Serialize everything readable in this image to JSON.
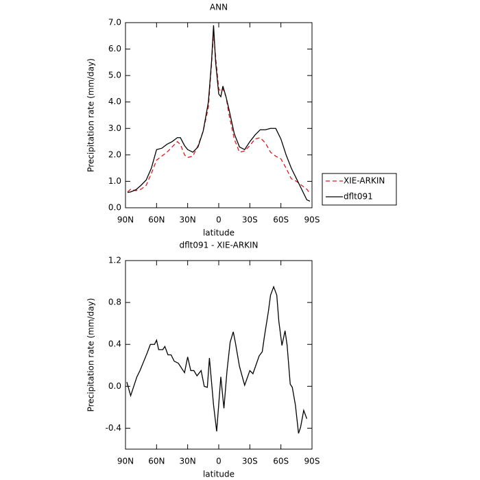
{
  "chart_data": [
    {
      "type": "line",
      "title": "ANN",
      "xlabel": "latitude",
      "ylabel": "Precipitation rate (mm/day)",
      "xlim": [
        90,
        -90
      ],
      "xticks": [
        {
          "value": 90,
          "label": "90N"
        },
        {
          "value": 60,
          "label": "60N"
        },
        {
          "value": 30,
          "label": "30N"
        },
        0,
        {
          "value": -30,
          "label": "30S"
        },
        {
          "value": -60,
          "label": "60S"
        },
        {
          "value": -90,
          "label": "90S"
        }
      ],
      "ylim": [
        0,
        7
      ],
      "yticks": [
        {
          "value": 0,
          "label": "0.0"
        },
        {
          "value": 1,
          "label": "1.0"
        },
        {
          "value": 2,
          "label": "2.0"
        },
        {
          "value": 3,
          "label": "3.0"
        },
        {
          "value": 4,
          "label": "4.0"
        },
        {
          "value": 5,
          "label": "5.0"
        },
        {
          "value": 6,
          "label": "6.0"
        },
        {
          "value": 7,
          "label": "7.0"
        }
      ],
      "legend": "right",
      "x": [
        88,
        85,
        80,
        75,
        70,
        65,
        60,
        55,
        50,
        45,
        40,
        37,
        33,
        30,
        25,
        20,
        15,
        10,
        7,
        5,
        3,
        0,
        -2,
        -4,
        -7,
        -10,
        -15,
        -20,
        -25,
        -30,
        -35,
        -40,
        -45,
        -50,
        -55,
        -60,
        -65,
        -70,
        -75,
        -80,
        -85,
        -88
      ],
      "series": [
        {
          "name": "XIE-ARKIN",
          "color": "#e8141c",
          "line_style": "dashed",
          "values": [
            0.6,
            0.7,
            0.65,
            0.7,
            0.85,
            1.3,
            1.8,
            1.95,
            2.1,
            2.3,
            2.5,
            2.4,
            2.0,
            1.9,
            1.95,
            2.35,
            2.9,
            3.8,
            5.4,
            6.6,
            5.7,
            4.5,
            4.4,
            4.5,
            4.2,
            3.5,
            2.6,
            2.1,
            2.15,
            2.35,
            2.6,
            2.65,
            2.45,
            2.1,
            1.95,
            1.85,
            1.5,
            1.1,
            1.0,
            0.85,
            0.7,
            0.55
          ]
        },
        {
          "name": "dflt091",
          "color": "#000000",
          "line_style": "solid",
          "values": [
            0.58,
            0.6,
            0.68,
            0.85,
            1.05,
            1.5,
            2.2,
            2.25,
            2.4,
            2.5,
            2.65,
            2.65,
            2.35,
            2.2,
            2.1,
            2.3,
            2.9,
            4.0,
            5.5,
            6.9,
            5.5,
            4.3,
            4.2,
            4.6,
            4.2,
            3.7,
            2.8,
            2.3,
            2.2,
            2.5,
            2.75,
            2.95,
            2.95,
            3.0,
            3.0,
            2.6,
            2.0,
            1.5,
            1.1,
            0.7,
            0.3,
            0.25
          ]
        }
      ]
    },
    {
      "type": "line",
      "title": "dflt091 - XIE-ARKIN",
      "xlabel": "latitude",
      "ylabel": "Precipitation rate (mm/day)",
      "xlim": [
        90,
        -90
      ],
      "xticks": [
        {
          "value": 90,
          "label": "90N"
        },
        {
          "value": 60,
          "label": "60N"
        },
        {
          "value": 30,
          "label": "30N"
        },
        0,
        {
          "value": -30,
          "label": "30S"
        },
        {
          "value": -60,
          "label": "60S"
        },
        {
          "value": -90,
          "label": "90S"
        }
      ],
      "ylim": [
        -0.6,
        1.2
      ],
      "yticks": [
        -0.4,
        {
          "value": 0,
          "label": "0.0"
        },
        0.4,
        0.8,
        1.2
      ],
      "x": [
        88.7,
        85,
        79,
        76,
        69,
        66,
        62,
        60,
        58,
        54,
        52,
        49,
        46,
        43,
        39,
        33,
        30,
        27,
        24,
        21,
        17,
        14,
        11,
        9,
        5,
        2,
        -2,
        -5,
        -8,
        -11,
        -14,
        -16,
        -20,
        -25,
        -30,
        -33,
        -39,
        -42,
        -44,
        -48,
        -50,
        -53,
        -56,
        -58,
        -61,
        -64,
        -66,
        -69,
        -71,
        -74,
        -77,
        -79,
        -82,
        -85
      ],
      "color": "#000000",
      "values": [
        0.04,
        -0.09,
        0.09,
        0.15,
        0.32,
        0.4,
        0.4,
        0.44,
        0.35,
        0.35,
        0.38,
        0.3,
        0.3,
        0.24,
        0.22,
        0.13,
        0.28,
        0.15,
        0.15,
        0.1,
        0.15,
        0,
        -0.01,
        0.27,
        -0.18,
        -0.43,
        0.09,
        -0.21,
        0.15,
        0.42,
        0.52,
        0.42,
        0.19,
        0.01,
        0.15,
        0.12,
        0.29,
        0.33,
        0.47,
        0.72,
        0.87,
        0.95,
        0.87,
        0.62,
        0.39,
        0.53,
        0.39,
        0.02,
        -0.01,
        -0.18,
        -0.45,
        -0.39,
        -0.23,
        -0.31
      ]
    }
  ]
}
